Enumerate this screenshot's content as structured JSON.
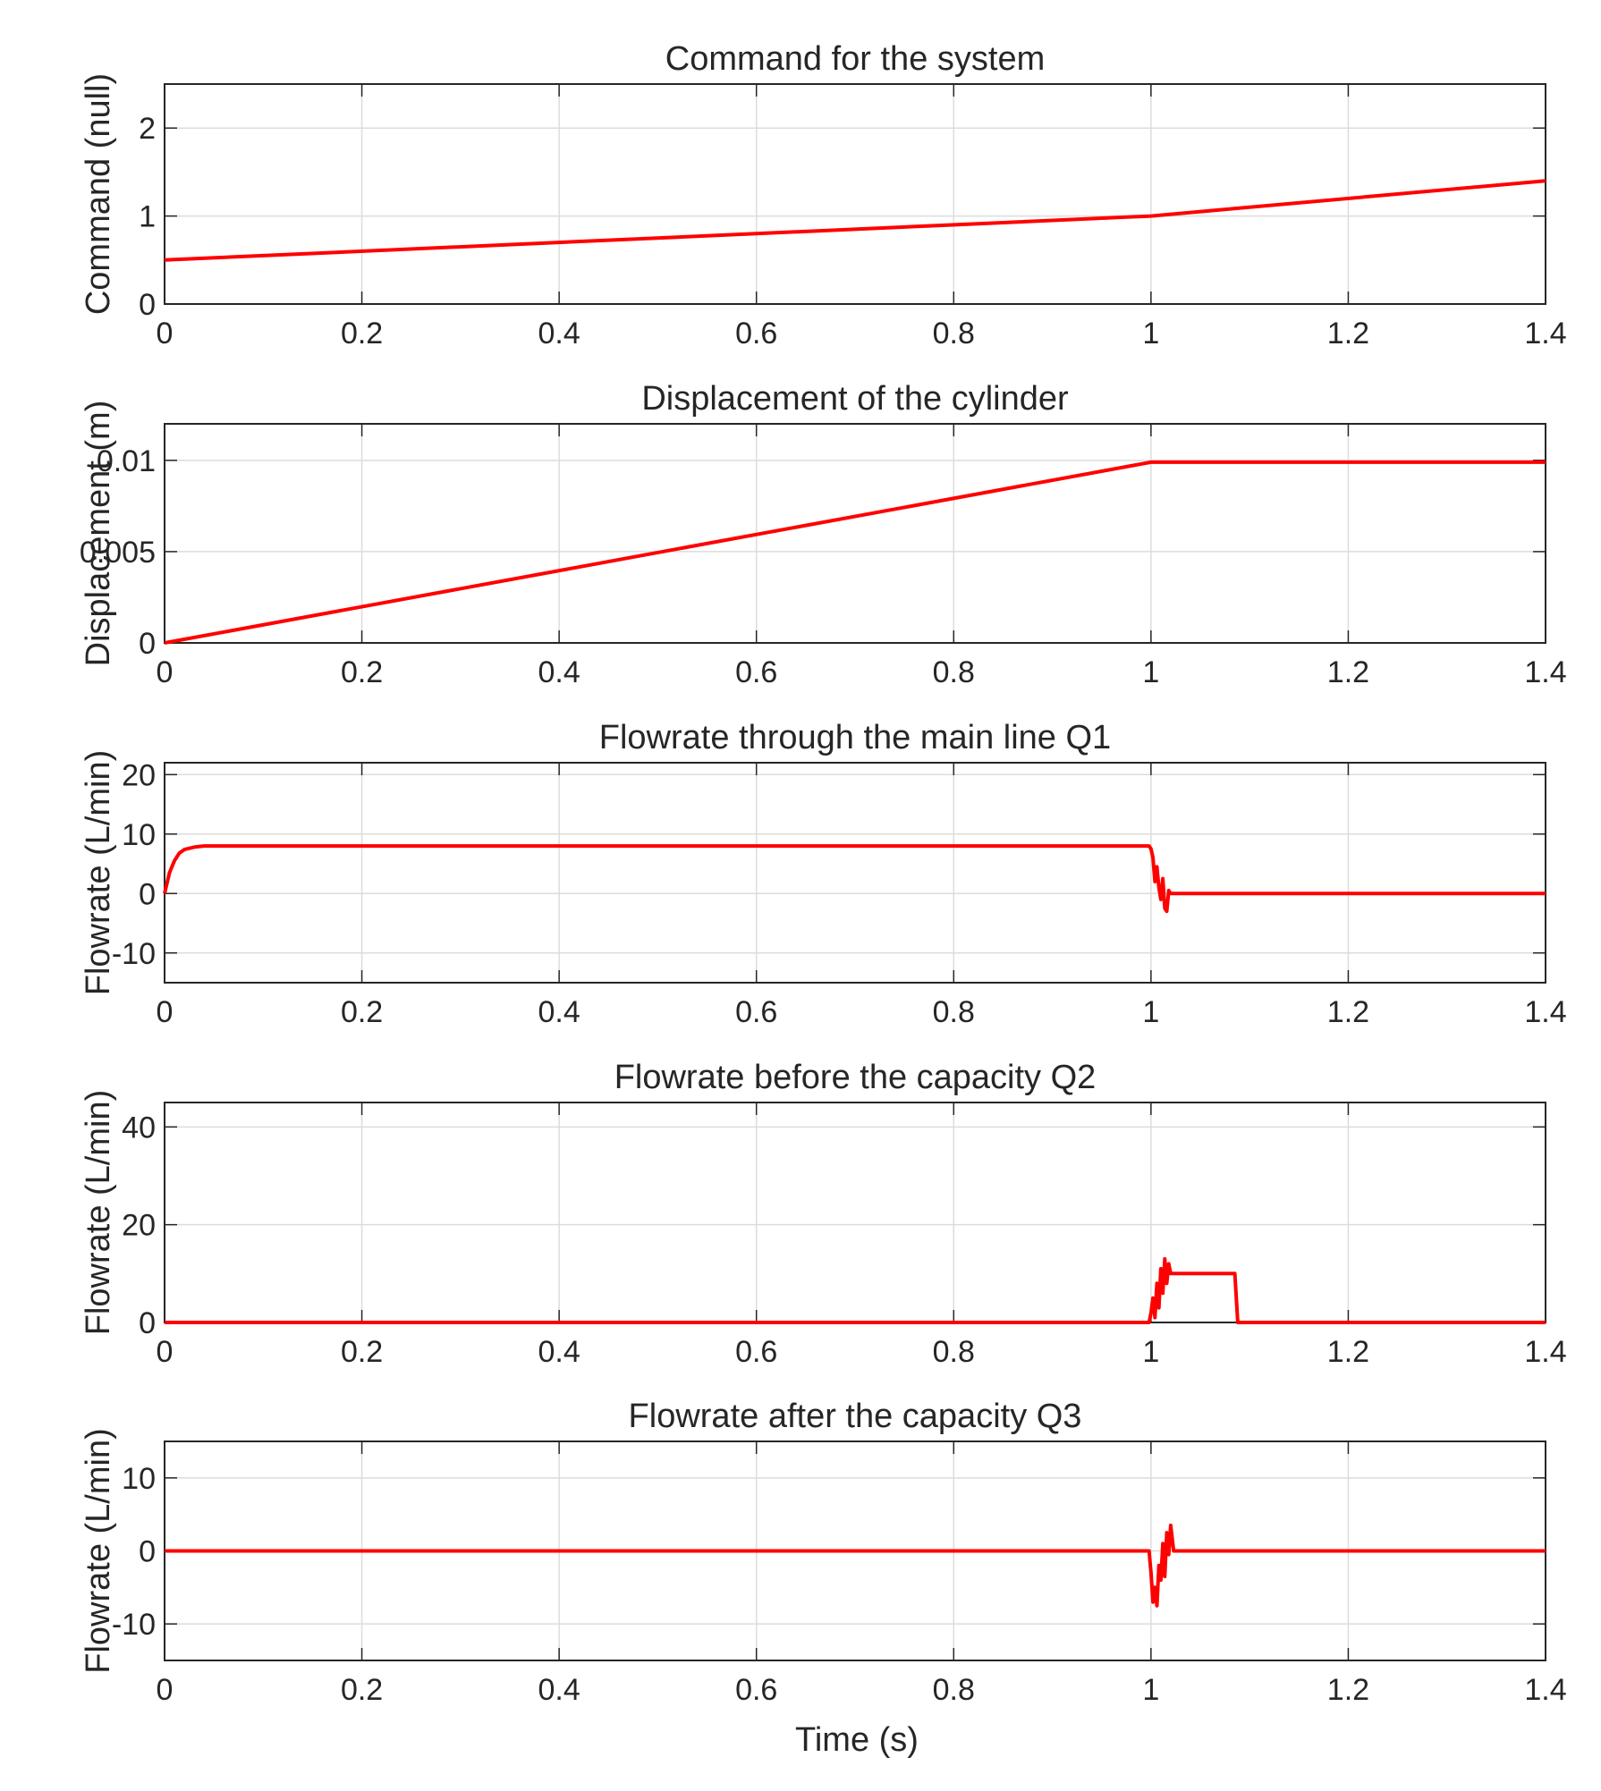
{
  "figure": {
    "xlabel": "Time (s)"
  },
  "colors": {
    "series": "#ff0000",
    "grid": "#dcdcdc",
    "axes": "#262626",
    "text": "#262626"
  },
  "chart_data": [
    {
      "type": "line",
      "title": "Command for the system",
      "xlabel": "",
      "ylabel": "Command (null)",
      "xlim": [
        0,
        1.4
      ],
      "ylim": [
        0,
        2.5
      ],
      "xticks": [
        "0",
        "0.2",
        "0.4",
        "0.6",
        "0.8",
        "1",
        "1.2",
        "1.4"
      ],
      "xtick_values": [
        0,
        0.2,
        0.4,
        0.6,
        0.8,
        1,
        1.2,
        1.4
      ],
      "yticks": [
        "0",
        "1",
        "2"
      ],
      "ytick_values": [
        0,
        1,
        2
      ],
      "grid": true,
      "series": [
        {
          "name": "Command",
          "x": [
            0,
            1,
            1.4
          ],
          "y": [
            0.5,
            1.0,
            1.4
          ]
        }
      ]
    },
    {
      "type": "line",
      "title": "Displacement of the cylinder",
      "xlabel": "",
      "ylabel": "Displacement (m)",
      "xlim": [
        0,
        1.4
      ],
      "ylim": [
        0,
        0.012
      ],
      "xticks": [
        "0",
        "0.2",
        "0.4",
        "0.6",
        "0.8",
        "1",
        "1.2",
        "1.4"
      ],
      "xtick_values": [
        0,
        0.2,
        0.4,
        0.6,
        0.8,
        1,
        1.2,
        1.4
      ],
      "yticks": [
        "0",
        "0.005",
        "0.01"
      ],
      "ytick_values": [
        0,
        0.005,
        0.01
      ],
      "grid": true,
      "series": [
        {
          "name": "Displacement",
          "x": [
            0,
            1,
            1.4
          ],
          "y": [
            0,
            0.0099,
            0.0099
          ]
        }
      ]
    },
    {
      "type": "line",
      "title": "Flowrate through the main line Q1",
      "xlabel": "",
      "ylabel": "Flowrate (L/min)",
      "xlim": [
        0,
        1.4
      ],
      "ylim": [
        -15,
        22
      ],
      "xticks": [
        "0",
        "0.2",
        "0.4",
        "0.6",
        "0.8",
        "1",
        "1.2",
        "1.4"
      ],
      "xtick_values": [
        0,
        0.2,
        0.4,
        0.6,
        0.8,
        1,
        1.2,
        1.4
      ],
      "yticks": [
        "-10",
        "0",
        "10",
        "20"
      ],
      "ytick_values": [
        -10,
        0,
        10,
        20
      ],
      "grid": true,
      "series": [
        {
          "name": "Q1",
          "x": [
            0,
            0.005,
            0.01,
            0.015,
            0.02,
            0.03,
            0.04,
            0.05,
            0.998,
            1.0,
            1.002,
            1.004,
            1.006,
            1.008,
            1.01,
            1.012,
            1.014,
            1.016,
            1.018,
            1.02,
            1.4
          ],
          "y": [
            0,
            3.5,
            5.5,
            6.8,
            7.4,
            7.8,
            8.0,
            8.0,
            8.0,
            7.5,
            6.0,
            2.0,
            4.5,
            1.0,
            -1.0,
            2.5,
            -2.5,
            -3.0,
            0.5,
            0,
            0
          ]
        }
      ]
    },
    {
      "type": "line",
      "title": "Flowrate before the capacity Q2",
      "xlabel": "",
      "ylabel": "Flowrate (L/min)",
      "xlim": [
        0,
        1.4
      ],
      "ylim": [
        0,
        45
      ],
      "xticks": [
        "0",
        "0.2",
        "0.4",
        "0.6",
        "0.8",
        "1",
        "1.2",
        "1.4"
      ],
      "xtick_values": [
        0,
        0.2,
        0.4,
        0.6,
        0.8,
        1,
        1.2,
        1.4
      ],
      "yticks": [
        "0",
        "20",
        "40"
      ],
      "ytick_values": [
        0,
        20,
        40
      ],
      "grid": true,
      "series": [
        {
          "name": "Q2",
          "x": [
            0,
            0.998,
            1.0,
            1.002,
            1.004,
            1.006,
            1.008,
            1.01,
            1.012,
            1.014,
            1.016,
            1.018,
            1.02,
            1.025,
            1.085,
            1.088,
            1.4
          ],
          "y": [
            0,
            0,
            2.0,
            5.0,
            1.0,
            8.0,
            3.0,
            11.0,
            6.0,
            13.0,
            8.0,
            12.0,
            10.0,
            10.0,
            10.0,
            0,
            0
          ]
        }
      ]
    },
    {
      "type": "line",
      "title": "Flowrate after the capacity Q3",
      "xlabel": "Time (s)",
      "ylabel": "Flowrate (L/min)",
      "xlim": [
        0,
        1.4
      ],
      "ylim": [
        -15,
        15
      ],
      "xticks": [
        "0",
        "0.2",
        "0.4",
        "0.6",
        "0.8",
        "1",
        "1.2",
        "1.4"
      ],
      "xtick_values": [
        0,
        0.2,
        0.4,
        0.6,
        0.8,
        1,
        1.2,
        1.4
      ],
      "yticks": [
        "-10",
        "0",
        "10"
      ],
      "ytick_values": [
        -10,
        0,
        10
      ],
      "grid": true,
      "series": [
        {
          "name": "Q3",
          "x": [
            0,
            0.998,
            1.0,
            1.002,
            1.004,
            1.006,
            1.008,
            1.01,
            1.012,
            1.014,
            1.016,
            1.018,
            1.02,
            1.023,
            1.4
          ],
          "y": [
            0,
            0,
            -3.0,
            -7.0,
            -5.0,
            -7.5,
            -2.0,
            -4.0,
            1.0,
            -3.5,
            2.5,
            -0.5,
            3.5,
            0,
            0
          ]
        }
      ]
    }
  ]
}
